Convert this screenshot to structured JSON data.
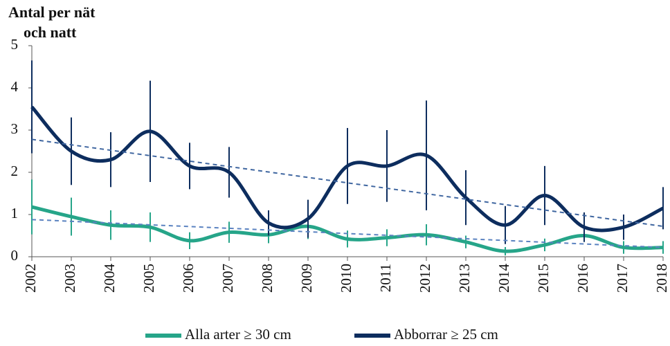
{
  "chart_data": {
    "type": "line",
    "y_title_lines": [
      "Antal per nät",
      "och natt"
    ],
    "categories": [
      "2002",
      "2003",
      "2004",
      "2005",
      "2006",
      "2007",
      "2008",
      "2009",
      "2010",
      "2011",
      "2012",
      "2013",
      "2014",
      "2015",
      "2016",
      "2017",
      "2018"
    ],
    "ylim": [
      0,
      5
    ],
    "yticks": [
      0,
      1,
      2,
      3,
      4,
      5
    ],
    "smooth": true,
    "series": [
      {
        "name": "Alla arter ≥ 30 cm",
        "color": "#26a589",
        "trend_color": "#5a82c0",
        "values": [
          1.18,
          0.95,
          0.75,
          0.7,
          0.38,
          0.58,
          0.52,
          0.72,
          0.42,
          0.45,
          0.52,
          0.35,
          0.13,
          0.28,
          0.5,
          0.22,
          0.22
        ],
        "errors": [
          0.65,
          0.45,
          0.35,
          0.35,
          0.2,
          0.25,
          0.2,
          0.3,
          0.2,
          0.2,
          0.25,
          0.15,
          0.1,
          0.15,
          0.15,
          0.15,
          0.15
        ],
        "trend": [
          0.88,
          0.22
        ]
      },
      {
        "name": "Abborrar ≥ 25 cm",
        "color": "#0d2d5e",
        "trend_color": "#3f66a0",
        "values": [
          3.55,
          2.5,
          2.3,
          2.97,
          2.15,
          2.0,
          0.8,
          0.9,
          2.15,
          2.15,
          2.4,
          1.4,
          0.75,
          1.45,
          0.7,
          0.7,
          1.15
        ],
        "errors": [
          1.1,
          0.8,
          0.65,
          1.2,
          0.55,
          0.6,
          0.3,
          0.45,
          0.9,
          0.85,
          1.3,
          0.65,
          0.45,
          0.7,
          0.35,
          0.3,
          0.5
        ],
        "trend": [
          2.78,
          0.72
        ]
      }
    ]
  }
}
